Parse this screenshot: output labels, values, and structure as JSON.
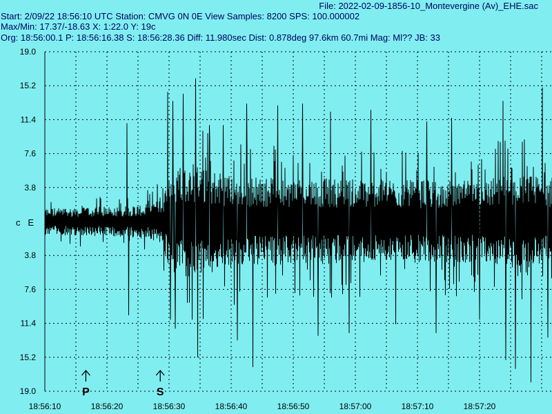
{
  "header": {
    "file": "File: 2022-02-09-1856-10_Montevergine (Av)_EHE.sac",
    "start": "Start: 2/09/22 18:56:10 UTC Station: CMVG 0N 0E View Samples: 8200  SPS: 100.000002",
    "maxmin": "Max/Min: 17.37/-18.63 X: 1:22.0 Y: 19c",
    "org": "Org: 18:56:00.1 P: 18:56:16.38 S: 18:56:28.36 Diff: 11.980sec Dist: 0.878deg 97.6km 60.7mi  Mag: Ml?? JB: 33"
  },
  "colors": {
    "background": "#80eef0",
    "trace": "#000000",
    "header_text": "#000060",
    "grid": "#000000"
  },
  "chart_data": {
    "type": "line",
    "channel_label": "c   E",
    "x_start": "18:56:10",
    "x_tick_labels": [
      "18:56:10",
      "18:56:20",
      "18:56:30",
      "18:56:40",
      "18:56:50",
      "18:57:00",
      "18:57:10",
      "18:57:20"
    ],
    "x_tick_seconds": [
      0,
      10,
      20,
      30,
      40,
      50,
      60,
      70
    ],
    "x_range_seconds": [
      0,
      82
    ],
    "y_tick_labels": [
      "19.0",
      "15.2",
      "11.4",
      "7.6",
      "3.8",
      "3.8",
      "7.6",
      "11.4",
      "15.2",
      "19.0"
    ],
    "y_tick_values": [
      19.0,
      15.2,
      11.4,
      7.6,
      3.8,
      -3.8,
      -7.6,
      -11.4,
      -15.2,
      -19.0
    ],
    "ylim": [
      -19.0,
      19.0
    ],
    "max": 17.37,
    "min": -18.63,
    "grid": "dotted",
    "phase_markers": [
      {
        "label": "P",
        "time_seconds": 6.38
      },
      {
        "label": "S",
        "time_seconds": 18.36
      }
    ],
    "envelope": {
      "description_times_seconds": [
        0,
        6,
        12,
        17,
        19,
        20,
        22,
        24,
        26,
        30,
        35,
        40,
        50,
        60,
        70,
        75,
        82
      ],
      "typical_amplitude": [
        2.3,
        2.4,
        2.6,
        3.0,
        4.5,
        8.5,
        10.0,
        10.0,
        9.0,
        8.0,
        7.5,
        7.5,
        7.2,
        7.0,
        7.0,
        8.0,
        7.5
      ]
    },
    "spikes": [
      {
        "t": 13.2,
        "v": 11.0
      },
      {
        "t": 13.5,
        "v": -10.5
      },
      {
        "t": 19.8,
        "v": 14.5
      },
      {
        "t": 20.2,
        "v": -11.0
      },
      {
        "t": 20.6,
        "v": 13.5
      },
      {
        "t": 21.0,
        "v": -12.0
      },
      {
        "t": 22.3,
        "v": 14.3
      },
      {
        "t": 24.3,
        "v": 16.0
      },
      {
        "t": 24.6,
        "v": -15.2
      },
      {
        "t": 26.5,
        "v": 10.8
      },
      {
        "t": 28.7,
        "v": 10.8
      },
      {
        "t": 31.0,
        "v": -13.3
      },
      {
        "t": 32.5,
        "v": 13.2
      },
      {
        "t": 33.5,
        "v": -16.3
      },
      {
        "t": 37.5,
        "v": 13.0
      },
      {
        "t": 41.5,
        "v": 13.2
      },
      {
        "t": 44.0,
        "v": -12.8
      },
      {
        "t": 46.0,
        "v": 12.3
      },
      {
        "t": 49.0,
        "v": -12.5
      },
      {
        "t": 52.5,
        "v": 12.5
      },
      {
        "t": 56.5,
        "v": -11.5
      },
      {
        "t": 61.5,
        "v": 11.2
      },
      {
        "t": 63.0,
        "v": -12.5
      },
      {
        "t": 65.5,
        "v": 11.6
      },
      {
        "t": 70.0,
        "v": -11.0
      },
      {
        "t": 73.8,
        "v": 13.5
      },
      {
        "t": 74.2,
        "v": -15.5
      },
      {
        "t": 75.8,
        "v": -16.5
      },
      {
        "t": 78.3,
        "v": -18.0
      },
      {
        "t": 80.1,
        "v": 15.0
      },
      {
        "t": 81.0,
        "v": -13.0
      }
    ]
  }
}
